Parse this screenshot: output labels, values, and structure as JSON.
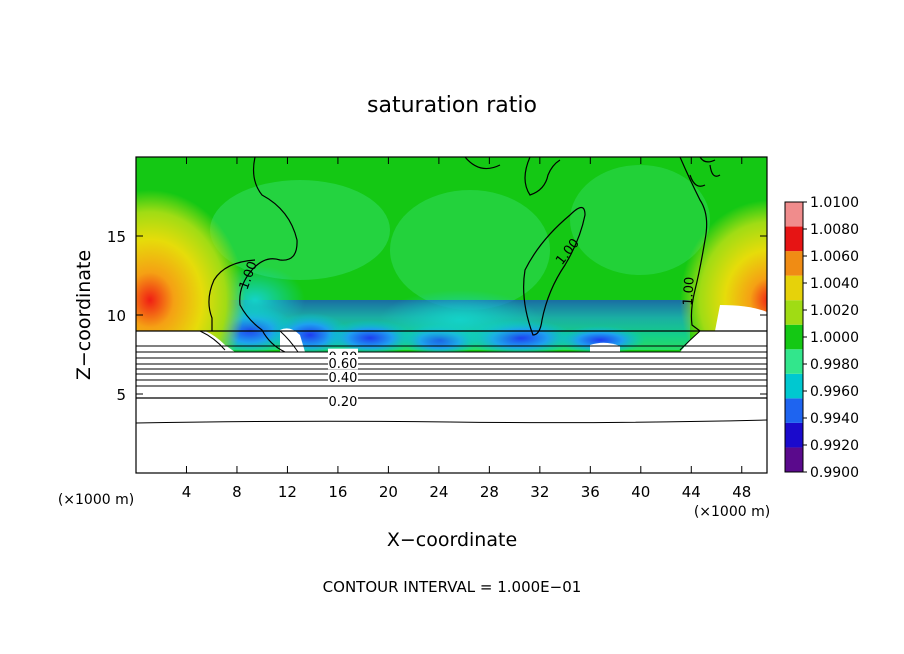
{
  "chart_data": {
    "type": "heatmap",
    "title": "saturation ratio",
    "xlabel": "X−coordinate",
    "ylabel": "Z−coordinate",
    "x_unit": "(×1000 m)",
    "y_unit": "(×1000 m)",
    "xlim": [
      0,
      50
    ],
    "ylim": [
      0,
      20
    ],
    "x_ticks": [
      4,
      8,
      12,
      16,
      20,
      24,
      28,
      32,
      36,
      40,
      44,
      48
    ],
    "y_ticks": [
      5,
      10,
      15
    ],
    "footer": "CONTOUR INTERVAL = 1.000E−01",
    "colorbar": {
      "levels": [
        "0.9900",
        "0.9920",
        "0.9940",
        "0.9960",
        "0.9980",
        "1.0000",
        "1.0020",
        "1.0040",
        "1.0060",
        "1.0080",
        "1.0100"
      ],
      "colors": [
        "#5a0a8c",
        "#1a0acc",
        "#1e64f0",
        "#00c8d0",
        "#32e68c",
        "#14c814",
        "#a0dc14",
        "#e6d20a",
        "#f08c14",
        "#e61414",
        "#f08c8c"
      ]
    },
    "contour_labels": [
      {
        "text": "1.00",
        "x": 8.9,
        "z": 12.5,
        "rotate": -70
      },
      {
        "text": "1.00",
        "x": 34.2,
        "z": 14.0,
        "rotate": -52
      },
      {
        "text": "1.00",
        "x": 43.8,
        "z": 11.5,
        "rotate": -86
      },
      {
        "text": "0.80",
        "x": 16.4,
        "z": 7.3,
        "rotate": 0
      },
      {
        "text": "0.60",
        "x": 16.4,
        "z": 6.9,
        "rotate": 0
      },
      {
        "text": "0.40",
        "x": 16.4,
        "z": 6.0,
        "rotate": 0
      },
      {
        "text": "0.20",
        "x": 16.4,
        "z": 4.5,
        "rotate": 0
      }
    ],
    "grid": false
  }
}
